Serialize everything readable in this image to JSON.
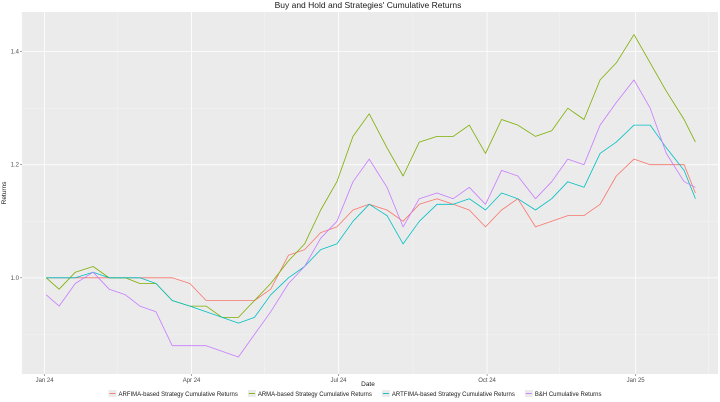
{
  "chart_data": {
    "type": "line",
    "title": "Buy and Hold and Strategies' Cumulative Returns",
    "xlabel": "Date",
    "ylabel": "Returns",
    "x_ticks": [
      "Jan 24",
      "Apr 24",
      "Jul 24",
      "Oct 24",
      "Jan 25"
    ],
    "y_ticks": [
      "1.0",
      "1.2",
      "1.4"
    ],
    "ylim": [
      0.83,
      1.47
    ],
    "xlim": [
      "2023-12-18",
      "2025-02-21"
    ],
    "grid": true,
    "legend_position": "bottom",
    "series": [
      {
        "name": "ARFIMA-based Strategy Cumulative Returns",
        "color": "#f8766d",
        "points": [
          [
            "2024-01-02",
            1.0
          ],
          [
            "2024-01-10",
            1.0
          ],
          [
            "2024-01-20",
            1.0
          ],
          [
            "2024-01-31",
            1.0
          ],
          [
            "2024-02-10",
            1.0
          ],
          [
            "2024-02-20",
            1.0
          ],
          [
            "2024-02-29",
            1.0
          ],
          [
            "2024-03-10",
            1.0
          ],
          [
            "2024-03-20",
            1.0
          ],
          [
            "2024-03-31",
            0.99
          ],
          [
            "2024-04-10",
            0.96
          ],
          [
            "2024-04-20",
            0.96
          ],
          [
            "2024-04-30",
            0.96
          ],
          [
            "2024-05-10",
            0.96
          ],
          [
            "2024-05-20",
            0.98
          ],
          [
            "2024-05-31",
            1.04
          ],
          [
            "2024-06-10",
            1.05
          ],
          [
            "2024-06-20",
            1.08
          ],
          [
            "2024-06-30",
            1.09
          ],
          [
            "2024-07-10",
            1.12
          ],
          [
            "2024-07-20",
            1.13
          ],
          [
            "2024-07-31",
            1.12
          ],
          [
            "2024-08-10",
            1.1
          ],
          [
            "2024-08-20",
            1.13
          ],
          [
            "2024-08-31",
            1.14
          ],
          [
            "2024-09-10",
            1.13
          ],
          [
            "2024-09-20",
            1.12
          ],
          [
            "2024-09-30",
            1.09
          ],
          [
            "2024-10-10",
            1.12
          ],
          [
            "2024-10-20",
            1.14
          ],
          [
            "2024-10-31",
            1.09
          ],
          [
            "2024-11-10",
            1.1
          ],
          [
            "2024-11-20",
            1.11
          ],
          [
            "2024-11-30",
            1.11
          ],
          [
            "2024-12-10",
            1.13
          ],
          [
            "2024-12-20",
            1.18
          ],
          [
            "2024-12-31",
            1.21
          ],
          [
            "2025-01-10",
            1.2
          ],
          [
            "2025-01-20",
            1.2
          ],
          [
            "2025-01-31",
            1.2
          ],
          [
            "2025-02-07",
            1.15
          ]
        ]
      },
      {
        "name": "ARMA-based Strategy Cumulative Returns",
        "color": "#7cae00",
        "points": [
          [
            "2024-01-02",
            1.0
          ],
          [
            "2024-01-10",
            0.98
          ],
          [
            "2024-01-20",
            1.01
          ],
          [
            "2024-01-31",
            1.02
          ],
          [
            "2024-02-10",
            1.0
          ],
          [
            "2024-02-20",
            1.0
          ],
          [
            "2024-02-29",
            0.99
          ],
          [
            "2024-03-10",
            0.99
          ],
          [
            "2024-03-20",
            0.96
          ],
          [
            "2024-03-31",
            0.95
          ],
          [
            "2024-04-10",
            0.95
          ],
          [
            "2024-04-20",
            0.93
          ],
          [
            "2024-04-30",
            0.93
          ],
          [
            "2024-05-10",
            0.96
          ],
          [
            "2024-05-20",
            0.99
          ],
          [
            "2024-05-31",
            1.03
          ],
          [
            "2024-06-10",
            1.06
          ],
          [
            "2024-06-20",
            1.12
          ],
          [
            "2024-06-30",
            1.17
          ],
          [
            "2024-07-10",
            1.25
          ],
          [
            "2024-07-20",
            1.29
          ],
          [
            "2024-07-31",
            1.23
          ],
          [
            "2024-08-10",
            1.18
          ],
          [
            "2024-08-20",
            1.24
          ],
          [
            "2024-08-31",
            1.25
          ],
          [
            "2024-09-10",
            1.25
          ],
          [
            "2024-09-20",
            1.27
          ],
          [
            "2024-09-30",
            1.22
          ],
          [
            "2024-10-10",
            1.28
          ],
          [
            "2024-10-20",
            1.27
          ],
          [
            "2024-10-31",
            1.25
          ],
          [
            "2024-11-10",
            1.26
          ],
          [
            "2024-11-20",
            1.3
          ],
          [
            "2024-11-30",
            1.28
          ],
          [
            "2024-12-10",
            1.35
          ],
          [
            "2024-12-20",
            1.38
          ],
          [
            "2024-12-31",
            1.43
          ],
          [
            "2025-01-10",
            1.38
          ],
          [
            "2025-01-20",
            1.33
          ],
          [
            "2025-01-31",
            1.28
          ],
          [
            "2025-02-07",
            1.24
          ]
        ]
      },
      {
        "name": "ARTFIMA-based Strategy Cumulative Returns",
        "color": "#00bfc4",
        "points": [
          [
            "2024-01-02",
            1.0
          ],
          [
            "2024-01-10",
            1.0
          ],
          [
            "2024-01-20",
            1.0
          ],
          [
            "2024-01-31",
            1.01
          ],
          [
            "2024-02-10",
            1.0
          ],
          [
            "2024-02-20",
            1.0
          ],
          [
            "2024-02-29",
            1.0
          ],
          [
            "2024-03-10",
            0.99
          ],
          [
            "2024-03-20",
            0.96
          ],
          [
            "2024-03-31",
            0.95
          ],
          [
            "2024-04-10",
            0.94
          ],
          [
            "2024-04-20",
            0.93
          ],
          [
            "2024-04-30",
            0.92
          ],
          [
            "2024-05-10",
            0.93
          ],
          [
            "2024-05-20",
            0.97
          ],
          [
            "2024-05-31",
            1.0
          ],
          [
            "2024-06-10",
            1.02
          ],
          [
            "2024-06-20",
            1.05
          ],
          [
            "2024-06-30",
            1.06
          ],
          [
            "2024-07-10",
            1.1
          ],
          [
            "2024-07-20",
            1.13
          ],
          [
            "2024-07-31",
            1.11
          ],
          [
            "2024-08-10",
            1.06
          ],
          [
            "2024-08-20",
            1.1
          ],
          [
            "2024-08-31",
            1.13
          ],
          [
            "2024-09-10",
            1.13
          ],
          [
            "2024-09-20",
            1.14
          ],
          [
            "2024-09-30",
            1.12
          ],
          [
            "2024-10-10",
            1.15
          ],
          [
            "2024-10-20",
            1.14
          ],
          [
            "2024-10-31",
            1.12
          ],
          [
            "2024-11-10",
            1.14
          ],
          [
            "2024-11-20",
            1.17
          ],
          [
            "2024-11-30",
            1.16
          ],
          [
            "2024-12-10",
            1.22
          ],
          [
            "2024-12-20",
            1.24
          ],
          [
            "2024-12-31",
            1.27
          ],
          [
            "2025-01-10",
            1.27
          ],
          [
            "2025-01-20",
            1.23
          ],
          [
            "2025-01-31",
            1.19
          ],
          [
            "2025-02-07",
            1.14
          ]
        ]
      },
      {
        "name": "B&H Cumulative Returns",
        "color": "#c77cff",
        "points": [
          [
            "2024-01-02",
            0.97
          ],
          [
            "2024-01-10",
            0.95
          ],
          [
            "2024-01-20",
            0.99
          ],
          [
            "2024-01-31",
            1.01
          ],
          [
            "2024-02-10",
            0.98
          ],
          [
            "2024-02-20",
            0.97
          ],
          [
            "2024-02-29",
            0.95
          ],
          [
            "2024-03-10",
            0.94
          ],
          [
            "2024-03-20",
            0.88
          ],
          [
            "2024-03-31",
            0.88
          ],
          [
            "2024-04-10",
            0.88
          ],
          [
            "2024-04-20",
            0.87
          ],
          [
            "2024-04-30",
            0.86
          ],
          [
            "2024-05-10",
            0.9
          ],
          [
            "2024-05-20",
            0.94
          ],
          [
            "2024-05-31",
            0.99
          ],
          [
            "2024-06-10",
            1.02
          ],
          [
            "2024-06-20",
            1.07
          ],
          [
            "2024-06-30",
            1.1
          ],
          [
            "2024-07-10",
            1.17
          ],
          [
            "2024-07-20",
            1.21
          ],
          [
            "2024-07-31",
            1.16
          ],
          [
            "2024-08-10",
            1.09
          ],
          [
            "2024-08-20",
            1.14
          ],
          [
            "2024-08-31",
            1.15
          ],
          [
            "2024-09-10",
            1.14
          ],
          [
            "2024-09-20",
            1.16
          ],
          [
            "2024-09-30",
            1.13
          ],
          [
            "2024-10-10",
            1.19
          ],
          [
            "2024-10-20",
            1.18
          ],
          [
            "2024-10-31",
            1.14
          ],
          [
            "2024-11-10",
            1.17
          ],
          [
            "2024-11-20",
            1.21
          ],
          [
            "2024-11-30",
            1.2
          ],
          [
            "2024-12-10",
            1.27
          ],
          [
            "2024-12-20",
            1.31
          ],
          [
            "2024-12-31",
            1.35
          ],
          [
            "2025-01-10",
            1.3
          ],
          [
            "2025-01-20",
            1.22
          ],
          [
            "2025-01-31",
            1.17
          ],
          [
            "2025-02-07",
            1.16
          ]
        ]
      }
    ]
  }
}
